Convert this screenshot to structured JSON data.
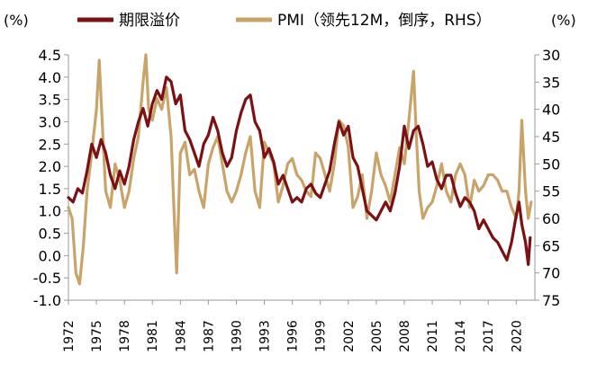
{
  "chart_data": {
    "type": "line",
    "title": "",
    "legend_position": "top",
    "left_unit": "(%)",
    "right_unit": "(%)",
    "left_axis": {
      "min": -1.0,
      "max": 4.5,
      "ticks": [
        "4.5",
        "4.0",
        "3.5",
        "3.0",
        "2.5",
        "2.0",
        "1.5",
        "1.0",
        "0.5",
        "0.0",
        "-0.5",
        "-1.0"
      ]
    },
    "right_axis": {
      "min": 30,
      "max": 75,
      "inverted": true,
      "ticks": [
        "30",
        "35",
        "40",
        "45",
        "50",
        "55",
        "60",
        "65",
        "70",
        "75"
      ]
    },
    "x_axis": {
      "min": 1972,
      "max": 2022,
      "ticks": [
        "1972",
        "1975",
        "1978",
        "1981",
        "1984",
        "1987",
        "1990",
        "1993",
        "1996",
        "1999",
        "2002",
        "2005",
        "2008",
        "2011",
        "2014",
        "2017",
        "2020"
      ]
    },
    "colors": {
      "series1": "#7B1113",
      "series2": "#C9A46A",
      "axis": "#9a9a9a"
    },
    "series": [
      {
        "name": "期限溢价",
        "axis": "left",
        "x": [
          1972.0,
          1972.5,
          1973.0,
          1973.5,
          1974.0,
          1974.5,
          1975.0,
          1975.5,
          1976.0,
          1976.5,
          1977.0,
          1977.5,
          1978.0,
          1978.5,
          1979.0,
          1979.5,
          1980.0,
          1980.5,
          1981.0,
          1981.5,
          1982.0,
          1982.5,
          1983.0,
          1983.5,
          1984.0,
          1984.5,
          1985.0,
          1985.5,
          1986.0,
          1986.5,
          1987.0,
          1987.5,
          1988.0,
          1988.5,
          1989.0,
          1989.5,
          1990.0,
          1990.5,
          1991.0,
          1991.5,
          1992.0,
          1992.5,
          1993.0,
          1993.5,
          1994.0,
          1994.5,
          1995.0,
          1995.5,
          1996.0,
          1996.5,
          1997.0,
          1997.5,
          1998.0,
          1998.5,
          1999.0,
          1999.5,
          2000.0,
          2000.5,
          2001.0,
          2001.5,
          2002.0,
          2002.5,
          2003.0,
          2003.5,
          2004.0,
          2004.5,
          2005.0,
          2005.5,
          2006.0,
          2006.5,
          2007.0,
          2007.5,
          2008.0,
          2008.5,
          2009.0,
          2009.5,
          2010.0,
          2010.5,
          2011.0,
          2011.5,
          2012.0,
          2012.5,
          2013.0,
          2013.5,
          2014.0,
          2014.5,
          2015.0,
          2015.5,
          2016.0,
          2016.5,
          2017.0,
          2017.5,
          2018.0,
          2018.5,
          2019.0,
          2019.5,
          2020.0,
          2020.3,
          2020.6,
          2021.0,
          2021.3,
          2021.5
        ],
        "values": [
          1.3,
          1.2,
          1.5,
          1.4,
          1.9,
          2.5,
          2.2,
          2.6,
          2.3,
          1.8,
          1.5,
          1.9,
          1.6,
          2.0,
          2.6,
          3.0,
          3.3,
          2.9,
          3.4,
          3.7,
          3.5,
          4.0,
          3.9,
          3.4,
          3.6,
          2.8,
          2.6,
          2.3,
          2.0,
          2.5,
          2.7,
          3.1,
          2.8,
          2.3,
          2.0,
          2.2,
          2.8,
          3.2,
          3.5,
          3.6,
          3.0,
          2.8,
          2.2,
          2.4,
          2.1,
          1.6,
          1.8,
          1.5,
          1.2,
          1.3,
          1.2,
          1.5,
          1.6,
          1.4,
          1.3,
          1.6,
          1.9,
          2.5,
          3.0,
          2.7,
          2.9,
          2.2,
          2.0,
          1.5,
          1.0,
          0.9,
          0.8,
          1.0,
          1.2,
          1.0,
          1.4,
          2.0,
          2.9,
          2.4,
          2.8,
          2.9,
          2.5,
          2.0,
          2.1,
          1.7,
          1.5,
          1.8,
          1.8,
          1.4,
          1.1,
          1.3,
          1.2,
          1.0,
          0.6,
          0.8,
          0.6,
          0.4,
          0.3,
          0.1,
          -0.1,
          0.3,
          0.9,
          1.2,
          0.7,
          0.3,
          -0.2,
          0.4
        ]
      },
      {
        "name": "PMI（领先12M，倒序，RHS）",
        "axis": "right",
        "x": [
          1972.0,
          1972.4,
          1972.8,
          1973.2,
          1973.6,
          1974.0,
          1974.5,
          1975.0,
          1975.3,
          1975.7,
          1976.0,
          1976.5,
          1977.0,
          1977.5,
          1978.0,
          1978.5,
          1979.0,
          1979.5,
          1980.0,
          1980.3,
          1980.6,
          1981.0,
          1981.5,
          1982.0,
          1982.5,
          1983.0,
          1983.3,
          1983.6,
          1984.0,
          1984.5,
          1985.0,
          1985.5,
          1986.0,
          1986.5,
          1987.0,
          1987.5,
          1988.0,
          1988.5,
          1989.0,
          1989.5,
          1990.0,
          1990.5,
          1991.0,
          1991.5,
          1992.0,
          1992.5,
          1993.0,
          1993.5,
          1994.0,
          1994.5,
          1995.0,
          1995.5,
          1996.0,
          1996.5,
          1997.0,
          1997.5,
          1998.0,
          1998.5,
          1999.0,
          1999.5,
          2000.0,
          2000.5,
          2001.0,
          2001.5,
          2002.0,
          2002.5,
          2003.0,
          2003.5,
          2004.0,
          2004.5,
          2005.0,
          2005.5,
          2006.0,
          2006.5,
          2007.0,
          2007.5,
          2008.0,
          2008.5,
          2009.0,
          2009.3,
          2009.6,
          2010.0,
          2010.5,
          2011.0,
          2011.5,
          2012.0,
          2012.5,
          2013.0,
          2013.5,
          2014.0,
          2014.5,
          2015.0,
          2015.5,
          2016.0,
          2016.5,
          2017.0,
          2017.5,
          2018.0,
          2018.5,
          2019.0,
          2019.5,
          2020.0,
          2020.3,
          2020.6,
          2021.0,
          2021.3,
          2021.6
        ],
        "values": [
          58,
          60,
          70,
          72,
          65,
          55,
          48,
          40,
          31,
          45,
          55,
          58,
          50,
          53,
          58,
          55,
          49,
          45,
          35,
          30,
          40,
          42,
          38,
          40,
          36,
          45,
          58,
          70,
          48,
          46,
          52,
          51,
          55,
          58,
          50,
          47,
          45,
          50,
          55,
          57,
          55,
          52,
          48,
          45,
          55,
          58,
          46,
          48,
          50,
          57,
          54,
          50,
          49,
          52,
          53,
          55,
          56,
          48,
          49,
          52,
          55,
          50,
          42,
          43,
          47,
          58,
          56,
          52,
          60,
          55,
          48,
          52,
          54,
          57,
          52,
          47,
          50,
          42,
          33,
          45,
          55,
          60,
          58,
          57,
          54,
          50,
          55,
          57,
          52,
          50,
          52,
          58,
          53,
          55,
          54,
          52,
          52,
          53,
          55,
          55,
          58,
          60,
          55,
          42,
          55,
          60,
          57
        ]
      }
    ]
  }
}
